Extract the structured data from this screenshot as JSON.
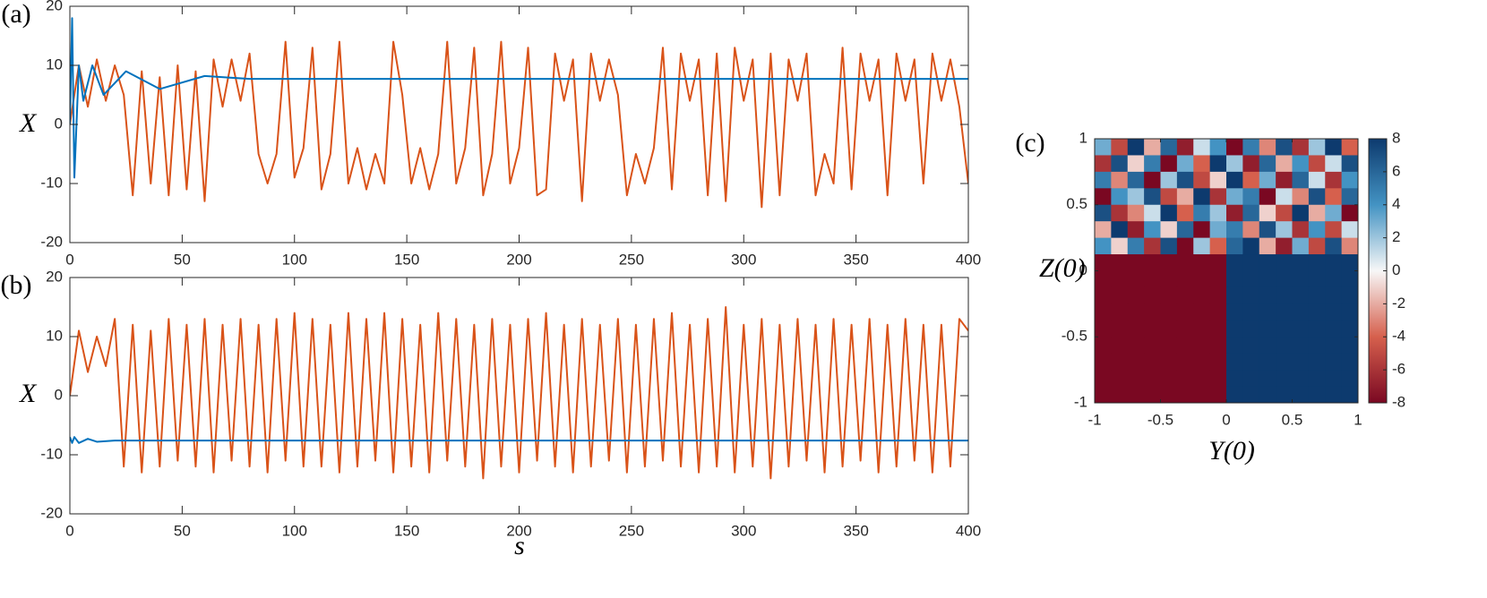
{
  "chart_data": [
    {
      "type": "line",
      "label": "(a)",
      "xlabel": "",
      "ylabel": "X",
      "xlim": [
        0,
        400
      ],
      "ylim": [
        -20,
        20
      ],
      "xticks": [
        0,
        50,
        100,
        150,
        200,
        250,
        300,
        350,
        400
      ],
      "yticks": [
        -20,
        -10,
        0,
        10,
        20
      ],
      "series": [
        {
          "color": "#d95319",
          "x": [
            0,
            4,
            8,
            12,
            16,
            20,
            24,
            28,
            32,
            36,
            40,
            44,
            48,
            52,
            56,
            60,
            64,
            68,
            72,
            76,
            80,
            84,
            88,
            92,
            96,
            100,
            104,
            108,
            112,
            116,
            120,
            124,
            128,
            132,
            136,
            140,
            144,
            148,
            152,
            156,
            160,
            164,
            168,
            172,
            176,
            180,
            184,
            188,
            192,
            196,
            200,
            204,
            208,
            212,
            216,
            220,
            224,
            228,
            232,
            236,
            240,
            244,
            248,
            252,
            256,
            260,
            264,
            268,
            272,
            276,
            280,
            284,
            288,
            292,
            296,
            300,
            304,
            308,
            312,
            316,
            320,
            324,
            328,
            332,
            336,
            340,
            344,
            348,
            352,
            356,
            360,
            364,
            368,
            372,
            376,
            380,
            384,
            388,
            392,
            396,
            400
          ],
          "values": [
            0,
            10,
            3,
            11,
            4,
            10,
            5,
            -12,
            9,
            -10,
            8,
            -12,
            10,
            -11,
            9,
            -13,
            11,
            3,
            11,
            4,
            12,
            -5,
            -10,
            -5,
            14,
            -9,
            -4,
            13,
            -11,
            -5,
            14,
            -10,
            -4,
            -11,
            -5,
            -10,
            14,
            5,
            -10,
            -4,
            -11,
            -5,
            14,
            -10,
            -4,
            13,
            -12,
            -5,
            14,
            -10,
            -4,
            13,
            -12,
            -11,
            12,
            4,
            11,
            -13,
            12,
            4,
            11,
            5,
            -12,
            -5,
            -10,
            -4,
            13,
            -11,
            12,
            4,
            11,
            -12,
            12,
            -13,
            13,
            4,
            11,
            -14,
            12,
            -12,
            11,
            4,
            12,
            -12,
            -5,
            -10,
            13,
            -11,
            12,
            4,
            11,
            -12,
            12,
            4,
            11,
            -10,
            12,
            4,
            11,
            3,
            -10
          ]
        },
        {
          "color": "#0072bd",
          "x": [
            0,
            1,
            2,
            4,
            6,
            10,
            15,
            25,
            40,
            60,
            80,
            400
          ],
          "values": [
            0,
            18,
            -9,
            10,
            4,
            10,
            5,
            9,
            6,
            8.2,
            7.7,
            7.7
          ]
        }
      ]
    },
    {
      "type": "line",
      "label": "(b)",
      "xlabel": "s",
      "ylabel": "X",
      "xlim": [
        0,
        400
      ],
      "ylim": [
        -20,
        20
      ],
      "xticks": [
        0,
        50,
        100,
        150,
        200,
        250,
        300,
        350,
        400
      ],
      "yticks": [
        -20,
        -10,
        0,
        10,
        20
      ],
      "series": [
        {
          "color": "#d95319",
          "x": [
            0,
            4,
            8,
            12,
            16,
            20,
            24,
            28,
            32,
            36,
            40,
            44,
            48,
            52,
            56,
            60,
            64,
            68,
            72,
            76,
            80,
            84,
            88,
            92,
            96,
            100,
            104,
            108,
            112,
            116,
            120,
            124,
            128,
            132,
            136,
            140,
            144,
            148,
            152,
            156,
            160,
            164,
            168,
            172,
            176,
            180,
            184,
            188,
            192,
            196,
            200,
            204,
            208,
            212,
            216,
            220,
            224,
            228,
            232,
            236,
            240,
            244,
            248,
            252,
            256,
            260,
            264,
            268,
            272,
            276,
            280,
            284,
            288,
            292,
            296,
            300,
            304,
            308,
            312,
            316,
            320,
            324,
            328,
            332,
            336,
            340,
            344,
            348,
            352,
            356,
            360,
            364,
            368,
            372,
            376,
            380,
            384,
            388,
            392,
            396,
            400
          ],
          "values": [
            0,
            11,
            4,
            10,
            5,
            13,
            -12,
            12,
            -13,
            11,
            -12,
            13,
            -11,
            12,
            -12,
            13,
            -13,
            12,
            -11,
            13,
            -12,
            12,
            -13,
            13,
            -11,
            14,
            -12,
            13,
            -12,
            12,
            -13,
            14,
            -12,
            13,
            -11,
            14,
            -13,
            13,
            -12,
            12,
            -13,
            14,
            -11,
            13,
            -12,
            12,
            -14,
            13,
            -12,
            12,
            -13,
            13,
            -11,
            14,
            -12,
            12,
            -13,
            13,
            -12,
            12,
            -11,
            13,
            -13,
            12,
            -12,
            13,
            -11,
            14,
            -12,
            12,
            -13,
            13,
            -12,
            15,
            -13,
            12,
            -12,
            13,
            -14,
            12,
            -12,
            13,
            -11,
            12,
            -13,
            13,
            -12,
            12,
            -11,
            13,
            -13,
            12,
            -12,
            13,
            -11,
            12,
            -13,
            12,
            -12,
            13,
            11
          ]
        },
        {
          "color": "#0072bd",
          "x": [
            0,
            1,
            2,
            4,
            8,
            12,
            20,
            400
          ],
          "values": [
            -7,
            -8,
            -7,
            -8,
            -7.3,
            -7.8,
            -7.6,
            -7.6
          ]
        }
      ]
    },
    {
      "type": "heatmap",
      "label": "(c)",
      "xlabel": "Y(0)",
      "ylabel": "Z(0)",
      "xlim": [
        -1,
        1
      ],
      "ylim": [
        -1,
        1
      ],
      "xticks": [
        -1,
        -0.5,
        0,
        0.5,
        1
      ],
      "yticks": [
        -1,
        -0.5,
        0,
        0.5,
        1
      ],
      "clim": [
        -8,
        8
      ],
      "colorbar_ticks": [
        -8,
        -6,
        -4,
        -2,
        0,
        2,
        4,
        6,
        8
      ],
      "colormap": [
        "#7a0822",
        "#d6604d",
        "#f7f7f7",
        "#4393c3",
        "#0d3a6e"
      ],
      "z": [
        [
          3,
          -5,
          8,
          -2,
          6,
          -7,
          1,
          4,
          -8,
          5,
          -3,
          7,
          -6,
          2,
          8,
          -4
        ],
        [
          -6,
          7,
          -1,
          5,
          -8,
          3,
          -4,
          8,
          2,
          -7,
          6,
          -2,
          4,
          -5,
          1,
          7
        ],
        [
          5,
          -3,
          6,
          -8,
          2,
          7,
          -5,
          -1,
          8,
          -4,
          3,
          -7,
          6,
          1,
          -6,
          4
        ],
        [
          -8,
          4,
          2,
          7,
          -5,
          -2,
          8,
          -6,
          3,
          5,
          -8,
          1,
          -3,
          7,
          -4,
          6
        ],
        [
          7,
          -6,
          -3,
          1,
          8,
          -4,
          5,
          2,
          -7,
          6,
          -1,
          -5,
          8,
          -2,
          3,
          -8
        ],
        [
          -2,
          8,
          -7,
          4,
          -1,
          6,
          -8,
          3,
          5,
          -3,
          7,
          2,
          -6,
          4,
          -5,
          1
        ],
        [
          4,
          -1,
          5,
          -6,
          7,
          -8,
          2,
          -4,
          6,
          8,
          -2,
          -7,
          3,
          -5,
          7,
          -3
        ],
        [
          -8,
          -8,
          -8,
          -8,
          -8,
          -8,
          -8,
          -8,
          8,
          8,
          8,
          8,
          8,
          8,
          8,
          8
        ],
        [
          -8,
          -8,
          -8,
          -8,
          -8,
          -8,
          -8,
          -8,
          8,
          8,
          8,
          8,
          8,
          8,
          8,
          8
        ],
        [
          -8,
          -8,
          -8,
          -8,
          -8,
          -8,
          -8,
          -8,
          8,
          8,
          8,
          8,
          8,
          8,
          8,
          8
        ],
        [
          -8,
          -8,
          -8,
          -8,
          -8,
          -8,
          -8,
          -8,
          8,
          8,
          8,
          8,
          8,
          8,
          8,
          8
        ],
        [
          -8,
          -8,
          -8,
          -8,
          -8,
          -8,
          -8,
          -8,
          8,
          8,
          8,
          8,
          8,
          8,
          8,
          8
        ],
        [
          -8,
          -8,
          -8,
          -8,
          -8,
          -8,
          -8,
          -8,
          8,
          8,
          8,
          8,
          8,
          8,
          8,
          8
        ],
        [
          -8,
          -8,
          -8,
          -8,
          -8,
          -8,
          -8,
          -8,
          8,
          8,
          8,
          8,
          8,
          8,
          8,
          8
        ],
        [
          -8,
          -8,
          -8,
          -8,
          -8,
          -8,
          -8,
          -8,
          8,
          8,
          8,
          8,
          8,
          8,
          8,
          8
        ],
        [
          -8,
          -8,
          -8,
          -8,
          -8,
          -8,
          -8,
          -8,
          8,
          8,
          8,
          8,
          8,
          8,
          8,
          8
        ]
      ]
    }
  ]
}
